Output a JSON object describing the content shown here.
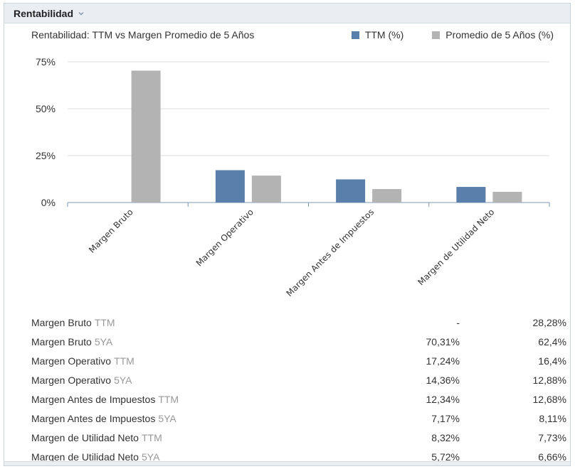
{
  "panel": {
    "title": "Rentabilidad"
  },
  "colors": {
    "ttm": "#5b7fab",
    "avg5": "#b3b3b3",
    "grid": "#dddddd",
    "axis": "#7f96ad"
  },
  "chart_data": {
    "type": "bar",
    "title": "Rentabilidad: TTM vs Margen Promedio de 5 Años",
    "categories": [
      "Margen Bruto",
      "Margen Operativo",
      "Margen Antes de Impuestos",
      "Margen de Utilidad Neto"
    ],
    "series": [
      {
        "name": "TTM (%)",
        "values": [
          null,
          17.24,
          12.34,
          8.32
        ]
      },
      {
        "name": "Promedio de 5 Años (%)",
        "values": [
          70.31,
          14.36,
          7.17,
          5.72
        ]
      }
    ],
    "y_ticks": [
      0,
      25,
      50,
      75
    ],
    "y_tick_labels": [
      "0%",
      "25%",
      "50%",
      "75%"
    ],
    "ylim": [
      0,
      75
    ],
    "grid": true,
    "legend_position": "top-right"
  },
  "table": {
    "rows": [
      {
        "label": "Margen Bruto",
        "suffix": "TTM",
        "value1": "-",
        "value2": "28,28%"
      },
      {
        "label": "Margen Bruto",
        "suffix": "5YA",
        "value1": "70,31%",
        "value2": "62,4%"
      },
      {
        "label": "Margen Operativo",
        "suffix": "TTM",
        "value1": "17,24%",
        "value2": "16,4%"
      },
      {
        "label": "Margen Operativo",
        "suffix": "5YA",
        "value1": "14,36%",
        "value2": "12,88%"
      },
      {
        "label": "Margen Antes de Impuestos",
        "suffix": "TTM",
        "value1": "12,34%",
        "value2": "12,68%"
      },
      {
        "label": "Margen Antes de Impuestos",
        "suffix": "5YA",
        "value1": "7,17%",
        "value2": "8,11%"
      },
      {
        "label": "Margen de Utilidad Neto",
        "suffix": "TTM",
        "value1": "8,32%",
        "value2": "7,73%"
      },
      {
        "label": "Margen de Utilidad Neto",
        "suffix": "5YA",
        "value1": "5,72%",
        "value2": "6,66%"
      }
    ]
  }
}
